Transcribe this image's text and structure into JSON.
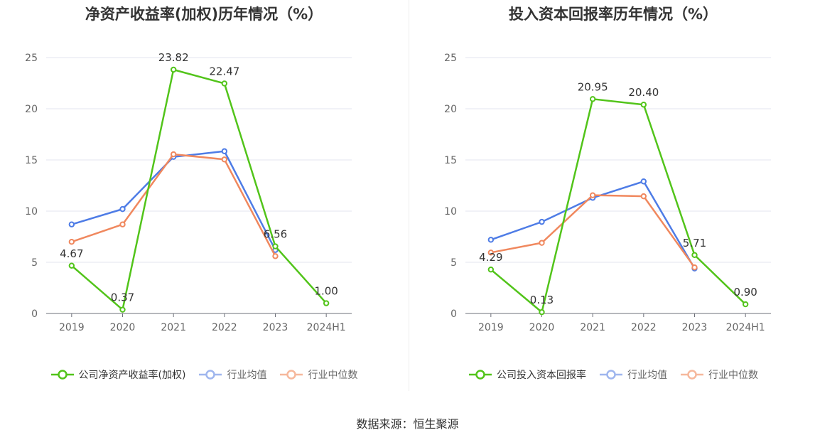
{
  "chart_data": [
    {
      "type": "line",
      "title": "净资产收益率(加权)历年情况（%）",
      "categories": [
        "2019",
        "2020",
        "2021",
        "2022",
        "2023",
        "2024H1"
      ],
      "ylim": [
        0,
        25
      ],
      "yticks": [
        0,
        5,
        10,
        15,
        20,
        25
      ],
      "grid": true,
      "legend_position": "bottom",
      "series": [
        {
          "name": "公司净资产收益率(加权)",
          "color": "#52c41a",
          "values": [
            4.67,
            0.37,
            23.82,
            22.47,
            6.56,
            1.0
          ],
          "labels": [
            "4.67",
            "0.37",
            "23.82",
            "22.47",
            "6.56",
            "1.00"
          ]
        },
        {
          "name": "行业均值",
          "color": "#4e7ce6",
          "values": [
            8.7,
            10.2,
            15.3,
            15.85,
            6.2,
            null
          ]
        },
        {
          "name": "行业中位数",
          "color": "#f0885e",
          "values": [
            7.0,
            8.7,
            15.55,
            15.05,
            5.6,
            null
          ]
        }
      ]
    },
    {
      "type": "line",
      "title": "投入资本回报率历年情况（%）",
      "categories": [
        "2019",
        "2020",
        "2021",
        "2022",
        "2023",
        "2024H1"
      ],
      "ylim": [
        0,
        25
      ],
      "yticks": [
        0,
        5,
        10,
        15,
        20,
        25
      ],
      "grid": true,
      "legend_position": "bottom",
      "series": [
        {
          "name": "公司投入资本回报率",
          "color": "#52c41a",
          "values": [
            4.29,
            0.13,
            20.95,
            20.4,
            5.71,
            0.9
          ],
          "labels": [
            "4.29",
            "0.13",
            "20.95",
            "20.40",
            "5.71",
            "0.90"
          ]
        },
        {
          "name": "行业均值",
          "color": "#4e7ce6",
          "values": [
            7.2,
            8.95,
            11.3,
            12.9,
            4.4,
            null
          ]
        },
        {
          "name": "行业中位数",
          "color": "#f0885e",
          "values": [
            5.95,
            6.9,
            11.55,
            11.45,
            4.5,
            null
          ]
        }
      ]
    }
  ],
  "footer": {
    "source": "数据来源：恒生聚源"
  }
}
